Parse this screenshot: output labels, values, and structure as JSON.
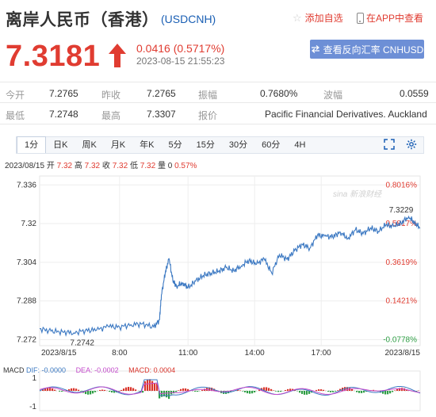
{
  "header": {
    "title": "离岸人民币（香港）",
    "symbol": "(USDCNH)",
    "favorite_label": "添加自选",
    "app_label": "在APP中查看"
  },
  "quote": {
    "price": "7.3181",
    "change": "0.0416 (0.5717%)",
    "timestamp": "2023-08-15 21:55:23",
    "reverse_label": "查看反向汇率 CNHUSD"
  },
  "stats": {
    "open_label": "今开",
    "open": "7.2765",
    "prev_close_label": "昨收",
    "prev_close": "7.2765",
    "amplitude_label": "振幅",
    "amplitude": "0.7680%",
    "spread_label": "波幅",
    "spread": "0.0559",
    "low_label": "最低",
    "low": "7.2748",
    "high_label": "最高",
    "high": "7.3307",
    "quoter_label": "报价",
    "quoter": "Pacific Financial Derivatives. Auckland"
  },
  "tabs": [
    "1分",
    "日K",
    "周K",
    "月K",
    "年K",
    "5分",
    "15分",
    "30分",
    "60分",
    "4H"
  ],
  "active_tab": "1分",
  "ohlc_line": {
    "date": "2023/08/15",
    "open_label": "开",
    "open": "7.32",
    "high_label": "高",
    "high": "7.32",
    "close_label": "收",
    "close": "7.32",
    "low_label": "低",
    "low": "7.32",
    "volume_label": "量",
    "volume": "0",
    "change": "0.57%"
  },
  "watermark": "sina 新浪财经",
  "chart_data": {
    "type": "line",
    "title": "",
    "x_labels": [
      "2023/8/15",
      "8:00",
      "11:00",
      "14:00",
      "17:00",
      "2023/8/15"
    ],
    "y_ticks": [
      7.336,
      7.32,
      7.304,
      7.288,
      7.272
    ],
    "pct_ticks": [
      "0.8016%",
      "0.5817%",
      "0.3619%",
      "0.1421%",
      "-0.0778%"
    ],
    "ylim": [
      7.2695,
      7.3397
    ],
    "min_label": "7.2742",
    "max_label": "7.3229",
    "series": [
      {
        "x": [
          0,
          0.03,
          0.06,
          0.09,
          0.12,
          0.15,
          0.18,
          0.21,
          0.24,
          0.27,
          0.3,
          0.315,
          0.32,
          0.33,
          0.34,
          0.35,
          0.36,
          0.375,
          0.39,
          0.41,
          0.43,
          0.45,
          0.47,
          0.49,
          0.51,
          0.53,
          0.55,
          0.57,
          0.59,
          0.61,
          0.63,
          0.65,
          0.67,
          0.69,
          0.71,
          0.73,
          0.75,
          0.77,
          0.79,
          0.81,
          0.83,
          0.85,
          0.87,
          0.89,
          0.91,
          0.93,
          0.95,
          0.97,
          0.985,
          1.0
        ],
        "values": [
          7.2765,
          7.2755,
          7.2752,
          7.2748,
          7.2758,
          7.276,
          7.2775,
          7.2772,
          7.2782,
          7.2785,
          7.2772,
          7.2802,
          7.2905,
          7.2995,
          7.3055,
          7.2965,
          7.294,
          7.2955,
          7.2935,
          7.2962,
          7.2985,
          7.2995,
          7.3002,
          7.3018,
          7.3005,
          7.3025,
          7.3048,
          7.3032,
          7.3055,
          7.2995,
          7.3072,
          7.3052,
          7.3088,
          7.3115,
          7.3098,
          7.3152,
          7.3148,
          7.3145,
          7.3165,
          7.3138,
          7.3175,
          7.3158,
          7.3182,
          7.3168,
          7.3195,
          7.3188,
          7.3202,
          7.3229,
          7.3205,
          7.3181
        ]
      }
    ],
    "macd": {
      "dif_label": "DIF: -0.0000",
      "dea_label": "DEA: -0.0002",
      "macd_label": "MACD: 0.0004",
      "y_ticks": [
        "1",
        "-1"
      ],
      "colors": {
        "dif": "#3b78c2",
        "dea": "#c44dcc",
        "macd_pos": "#d9342b",
        "macd_neg": "#2e9e44"
      }
    }
  },
  "colors": {
    "up": "#e03c31",
    "down": "#2e9e44",
    "line": "#3b78c2",
    "link": "#1a5fb4",
    "button": "#6d8fd6"
  }
}
